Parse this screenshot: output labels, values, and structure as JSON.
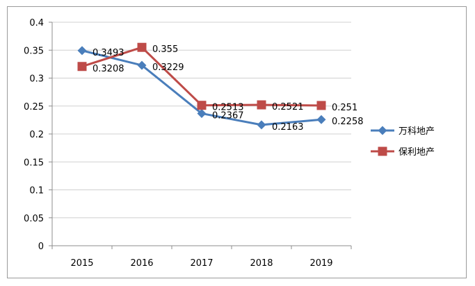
{
  "chart_data": {
    "type": "line",
    "categories": [
      "2015",
      "2016",
      "2017",
      "2018",
      "2019"
    ],
    "ylim": [
      0,
      0.4
    ],
    "yticks": [
      "0",
      "0.05",
      "0.1",
      "0.15",
      "0.2",
      "0.25",
      "0.3",
      "0.35",
      "0.4"
    ],
    "grid": true,
    "legend_position": "right",
    "series": [
      {
        "name": "万科地产",
        "color": "#4a7ebb",
        "marker": "diamond",
        "values": [
          0.3493,
          0.3229,
          0.2367,
          0.2163,
          0.2258
        ],
        "labels": [
          "0.3493",
          "0.3229",
          "0.2367",
          "0.2163",
          "0.2258"
        ]
      },
      {
        "name": "保利地产",
        "color": "#be4b48",
        "marker": "square",
        "values": [
          0.3208,
          0.355,
          0.2513,
          0.2521,
          0.251
        ],
        "labels": [
          "0.3208",
          "0.355",
          "0.2513",
          "0.2521",
          "0.251"
        ]
      }
    ]
  }
}
